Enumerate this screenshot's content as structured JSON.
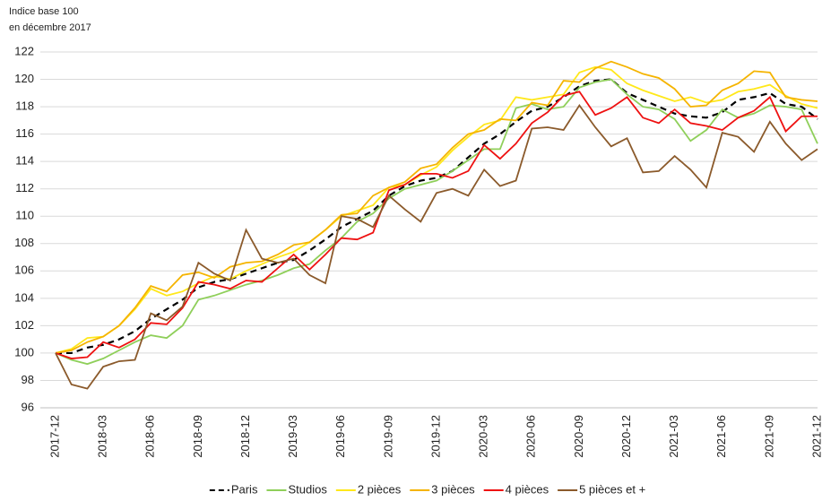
{
  "chart_data": {
    "type": "line",
    "ylabel": [
      "Indice base 100",
      "en décembre 2017"
    ],
    "categories": [
      "2017-12",
      null,
      null,
      "2018-03",
      null,
      null,
      "2018-06",
      null,
      null,
      "2018-09",
      null,
      null,
      "2018-12",
      null,
      null,
      "2019-03",
      null,
      null,
      "2019-06",
      null,
      null,
      "2019-09",
      null,
      null,
      "2019-12",
      null,
      null,
      "2020-03",
      null,
      null,
      "2020-06",
      null,
      null,
      "2020-09",
      null,
      null,
      "2020-12",
      null,
      null,
      "2021-03",
      null,
      null,
      "2021-06",
      null,
      null,
      "2021-09",
      null,
      null,
      "2021-12"
    ],
    "ylim": [
      96,
      122
    ],
    "yticks": [
      96,
      98,
      100,
      102,
      104,
      106,
      108,
      110,
      112,
      114,
      116,
      118,
      120,
      122
    ],
    "grid": true,
    "legend": "bottom",
    "series": [
      {
        "name": "Paris",
        "color": "#000000",
        "dash": "dashed",
        "values": [
          100,
          100.0,
          100.4,
          100.6,
          101.0,
          101.6,
          102.5,
          103.2,
          103.9,
          104.8,
          105.2,
          105.4,
          105.8,
          106.2,
          106.6,
          106.8,
          107.5,
          108.3,
          109.2,
          109.8,
          110.4,
          111.5,
          112.2,
          112.6,
          112.8,
          113.3,
          114.3,
          115.3,
          116.0,
          116.9,
          117.7,
          118.0,
          118.7,
          119.5,
          119.9,
          120.0,
          119.0,
          118.5,
          118.0,
          117.5,
          117.3,
          117.2,
          117.6,
          118.5,
          118.7,
          119.0,
          118.2,
          118.0,
          117.1
        ]
      },
      {
        "name": "Studios",
        "color": "#8fcf5a",
        "values": [
          100,
          99.5,
          99.2,
          99.6,
          100.2,
          100.8,
          101.3,
          101.1,
          102.0,
          103.9,
          104.2,
          104.6,
          105.0,
          105.3,
          105.7,
          106.2,
          106.5,
          107.5,
          108.4,
          109.6,
          110.2,
          111.3,
          112.0,
          112.3,
          112.6,
          113.3,
          114.1,
          114.9,
          114.9,
          117.9,
          118.2,
          117.8,
          118.0,
          119.4,
          119.8,
          120.0,
          118.9,
          118.0,
          117.8,
          117.1,
          115.5,
          116.3,
          117.8,
          117.2,
          117.5,
          118.1,
          118.0,
          117.8,
          115.3
        ]
      },
      {
        "name": "2 pièces",
        "color": "#ffe81a",
        "values": [
          100,
          100.3,
          101.1,
          101.2,
          102.0,
          103.2,
          104.7,
          104.2,
          104.5,
          105.1,
          105.6,
          105.4,
          106.0,
          106.5,
          107.0,
          107.4,
          108.1,
          109.0,
          110.0,
          110.4,
          110.8,
          112.1,
          112.3,
          113.0,
          113.6,
          114.8,
          115.8,
          116.7,
          117.0,
          118.7,
          118.5,
          118.7,
          118.9,
          120.5,
          120.9,
          120.7,
          119.7,
          119.2,
          118.8,
          118.4,
          118.7,
          118.3,
          118.5,
          119.1,
          119.3,
          119.6,
          118.8,
          118.2,
          117.9
        ]
      },
      {
        "name": "3 pièces",
        "color": "#f5b400",
        "values": [
          100,
          100.2,
          100.8,
          101.2,
          102.0,
          103.3,
          104.9,
          104.5,
          105.7,
          105.9,
          105.5,
          106.3,
          106.6,
          106.7,
          107.2,
          107.9,
          108.1,
          109.0,
          110.1,
          110.2,
          111.5,
          112.1,
          112.5,
          113.5,
          113.8,
          115.0,
          116.0,
          116.3,
          117.1,
          117.0,
          118.3,
          118.1,
          119.9,
          119.8,
          120.8,
          121.3,
          120.9,
          120.4,
          120.1,
          119.3,
          118.0,
          118.1,
          119.2,
          119.7,
          120.6,
          120.5,
          118.7,
          118.5,
          118.4
        ]
      },
      {
        "name": "4 pièces",
        "color": "#ee1111",
        "values": [
          100,
          99.6,
          99.7,
          100.8,
          100.4,
          101.0,
          102.2,
          102.1,
          103.3,
          105.2,
          105.0,
          104.7,
          105.3,
          105.2,
          106.2,
          107.2,
          106.1,
          107.2,
          108.4,
          108.3,
          108.8,
          111.9,
          112.3,
          113.1,
          113.1,
          112.8,
          113.3,
          115.2,
          114.2,
          115.3,
          116.8,
          117.6,
          118.8,
          119.1,
          117.4,
          117.9,
          118.7,
          117.2,
          116.8,
          117.8,
          116.8,
          116.6,
          116.3,
          117.2,
          117.7,
          118.7,
          116.2,
          117.3,
          117.3
        ]
      },
      {
        "name": "5 pièces et +",
        "color": "#8b5a2b",
        "values": [
          100,
          97.7,
          97.4,
          99.0,
          99.4,
          99.5,
          102.9,
          102.4,
          103.4,
          106.6,
          105.8,
          105.3,
          109.0,
          106.9,
          106.6,
          106.9,
          105.7,
          105.1,
          110.0,
          109.8,
          109.2,
          111.5,
          110.5,
          109.6,
          111.7,
          112.0,
          111.5,
          113.4,
          112.2,
          112.6,
          116.4,
          116.5,
          116.3,
          118.1,
          116.5,
          115.1,
          115.7,
          113.2,
          113.3,
          114.4,
          113.4,
          112.1,
          116.1,
          115.8,
          114.7,
          116.9,
          115.3,
          114.1,
          114.9
        ]
      }
    ]
  }
}
